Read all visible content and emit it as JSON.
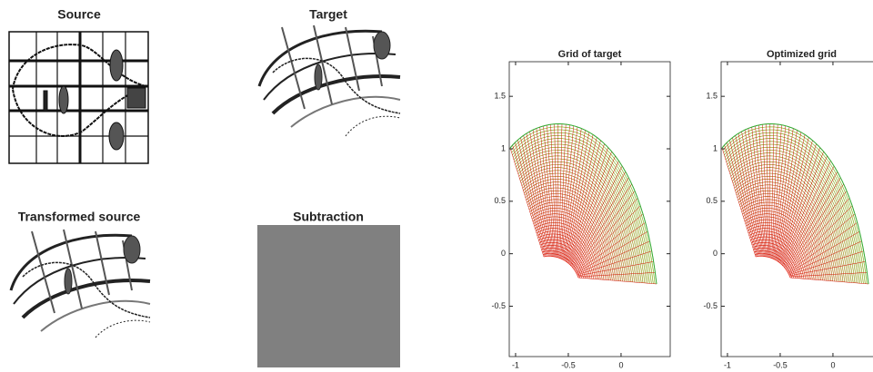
{
  "images": [
    {
      "title": "Source"
    },
    {
      "title": "Target"
    },
    {
      "title": "Transformed source"
    },
    {
      "title": "Subtraction"
    }
  ],
  "chart_data": [
    {
      "type": "mesh",
      "title": "Grid of target",
      "xlim": [
        -1.06,
        0.466
      ],
      "ylim": [
        -0.98,
        1.83
      ],
      "xticks": [
        -1,
        -0.5,
        0
      ],
      "yticks": [
        -0.5,
        0,
        0.5,
        1,
        1.5
      ]
    },
    {
      "type": "mesh",
      "title": "Optimized grid",
      "xlim": [
        -1.06,
        0.466
      ],
      "ylim": [
        -0.98,
        1.83
      ],
      "xticks": [
        -1,
        -0.5,
        0
      ],
      "yticks": [
        -0.5,
        0,
        0.5,
        1,
        1.5
      ]
    }
  ]
}
